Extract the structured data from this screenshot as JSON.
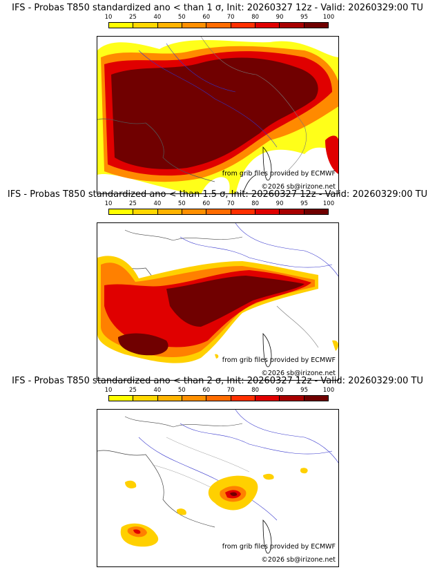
{
  "colorbar": {
    "labels": [
      "10",
      "25",
      "40",
      "50",
      "60",
      "70",
      "80",
      "90",
      "95",
      "100"
    ],
    "colors": [
      "#ffff00",
      "#ffd800",
      "#ffb400",
      "#ff9000",
      "#ff6c00",
      "#ff3000",
      "#e00000",
      "#a80000",
      "#700000"
    ]
  },
  "panels": [
    {
      "title": "IFS - Probas T850  standardized ano < than 1 σ, Init: 20260327 12z - Valid: 20260329:00 TU",
      "source_note": "from grib files provided by ECMWF",
      "copyright": "©2026 sb@irizone.net"
    },
    {
      "title": "IFS - Probas T850  standardized ano < than 1.5 σ, Init: 20260327 12z - Valid: 20260329:00 TU",
      "source_note": "from grib files provided by ECMWF",
      "copyright": "©2026 sb@irizone.net"
    },
    {
      "title": "IFS - Probas T850  standardized ano < than 2 σ, Init: 20260327 12z - Valid: 20260329:00 TU",
      "source_note": "from grib files provided by ECMWF",
      "copyright": "©2026 sb@irizone.net"
    }
  ]
}
